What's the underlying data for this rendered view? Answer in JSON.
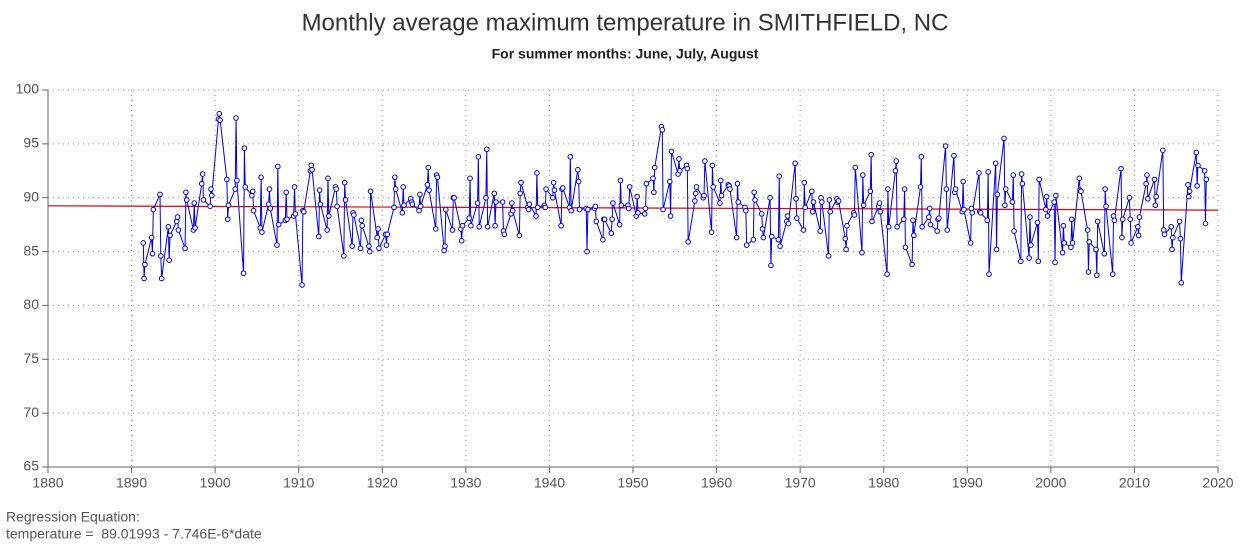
{
  "chart_data": {
    "type": "line",
    "title": "Monthly average maximum temperature in SMITHFIELD, NC",
    "subtitle": "For summer months: June, July, August",
    "regression_heading": "Regression Equation:",
    "regression_text": "temperature =  89.01993 - 7.746E-6*date",
    "regression": {
      "intercept": 89.01993,
      "slope": -7.746e-06,
      "color": "#e00000"
    },
    "xlim": [
      1880,
      2020
    ],
    "xticks": [
      1880,
      1890,
      1900,
      1910,
      1920,
      1930,
      1940,
      1950,
      1960,
      1970,
      1980,
      1990,
      2000,
      2010,
      2020
    ],
    "ylim": [
      65,
      100
    ],
    "yticks": [
      65,
      70,
      75,
      80,
      85,
      90,
      95,
      100
    ],
    "grid": true,
    "series": [
      {
        "name": "temperature",
        "color": "#0000e0",
        "x": [
          1891.4,
          1891.5,
          1891.6,
          1892.4,
          1892.5,
          1892.6,
          1893.4,
          1893.5,
          1893.6,
          1894.4,
          1894.5,
          1894.6,
          1895.4,
          1895.5,
          1895.6,
          1896.4,
          1896.5,
          1896.6,
          1897.4,
          1897.5,
          1897.6,
          1898.4,
          1898.5,
          1898.6,
          1899.4,
          1899.5,
          1899.6,
          1900.4,
          1900.5,
          1900.6,
          1901.4,
          1901.5,
          1901.6,
          1902.4,
          1902.5,
          1902.6,
          1903.4,
          1903.5,
          1903.6,
          1904.4,
          1904.5,
          1904.6,
          1905.4,
          1905.5,
          1905.6,
          1906.4,
          1906.5,
          1906.6,
          1907.4,
          1907.5,
          1907.6,
          1908.4,
          1908.5,
          1908.6,
          1909.4,
          1909.5,
          1909.6,
          1910.4,
          1910.5,
          1910.6,
          1911.4,
          1911.5,
          1911.6,
          1912.4,
          1912.5,
          1912.6,
          1913.4,
          1913.5,
          1913.6,
          1914.4,
          1914.5,
          1914.6,
          1915.4,
          1915.5,
          1915.6,
          1916.4,
          1916.5,
          1916.6,
          1917.4,
          1917.5,
          1917.6,
          1918.4,
          1918.5,
          1918.6,
          1919.4,
          1919.5,
          1919.6,
          1920.4,
          1920.5,
          1920.6,
          1921.4,
          1921.5,
          1921.6,
          1922.4,
          1922.5,
          1922.6,
          1923.4,
          1923.5,
          1923.6,
          1924.4,
          1924.5,
          1924.6,
          1925.4,
          1925.5,
          1925.6,
          1926.4,
          1926.5,
          1926.6,
          1927.4,
          1927.5,
          1927.6,
          1928.4,
          1928.5,
          1928.6,
          1929.4,
          1929.5,
          1929.6,
          1930.4,
          1930.5,
          1930.6,
          1931.4,
          1931.5,
          1931.6,
          1932.4,
          1932.5,
          1932.6,
          1933.4,
          1933.5,
          1933.6,
          1934.4,
          1934.5,
          1934.6,
          1935.4,
          1935.5,
          1935.6,
          1936.4,
          1936.5,
          1936.6,
          1937.4,
          1937.5,
          1937.6,
          1938.4,
          1938.5,
          1938.6,
          1939.4,
          1939.5,
          1939.6,
          1940.4,
          1940.5,
          1940.6,
          1941.4,
          1941.5,
          1941.6,
          1942.4,
          1942.5,
          1942.6,
          1943.4,
          1943.5,
          1943.6,
          1944.4,
          1944.5,
          1944.6,
          1945.4,
          1945.5,
          1945.6,
          1946.4,
          1946.5,
          1946.6,
          1947.4,
          1947.5,
          1947.6,
          1948.4,
          1948.5,
          1948.6,
          1949.4,
          1949.5,
          1949.6,
          1950.4,
          1950.5,
          1950.6,
          1951.4,
          1951.5,
          1951.6,
          1952.4,
          1952.5,
          1952.6,
          1953.4,
          1953.5,
          1953.6,
          1954.4,
          1954.5,
          1954.6,
          1955.4,
          1955.5,
          1955.6,
          1956.4,
          1956.5,
          1956.6,
          1957.4,
          1957.5,
          1957.6,
          1958.4,
          1958.5,
          1958.6,
          1959.4,
          1959.5,
          1959.6,
          1960.4,
          1960.5,
          1960.6,
          1961.4,
          1961.5,
          1961.6,
          1962.4,
          1962.5,
          1962.6,
          1963.4,
          1963.5,
          1963.6,
          1964.4,
          1964.5,
          1964.6,
          1965.4,
          1965.5,
          1965.6,
          1966.4,
          1966.5,
          1966.6,
          1967.4,
          1967.5,
          1967.6,
          1968.4,
          1968.5,
          1968.6,
          1969.4,
          1969.5,
          1969.6,
          1970.4,
          1970.5,
          1970.6,
          1971.4,
          1971.5,
          1971.6,
          1972.4,
          1972.5,
          1972.6,
          1973.4,
          1973.5,
          1973.6,
          1974.4,
          1974.5,
          1974.6,
          1975.4,
          1975.5,
          1975.6,
          1976.4,
          1976.5,
          1976.6,
          1977.4,
          1977.5,
          1977.6,
          1978.4,
          1978.5,
          1978.6,
          1979.4,
          1979.5,
          1979.6,
          1980.4,
          1980.5,
          1980.6,
          1981.4,
          1981.5,
          1981.6,
          1982.4,
          1982.5,
          1982.6,
          1983.4,
          1983.5,
          1983.6,
          1984.4,
          1984.5,
          1984.6,
          1985.4,
          1985.5,
          1985.6,
          1986.4,
          1986.5,
          1986.6,
          1987.4,
          1987.5,
          1987.6,
          1988.4,
          1988.5,
          1988.6,
          1989.4,
          1989.5,
          1989.6,
          1990.4,
          1990.5,
          1990.6,
          1991.4,
          1991.5,
          1991.6,
          1992.4,
          1992.5,
          1992.6,
          1993.4,
          1993.5,
          1993.6,
          1994.4,
          1994.5,
          1994.6,
          1995.4,
          1995.5,
          1995.6,
          1996.4,
          1996.5,
          1996.6,
          1997.4,
          1997.5,
          1997.6,
          1998.4,
          1998.5,
          1998.6,
          1999.4,
          1999.5,
          1999.6,
          2000.4,
          2000.5,
          2000.6,
          2001.4,
          2001.5,
          2001.6,
          2002.4,
          2002.5,
          2002.6,
          2003.4,
          2003.5,
          2003.6,
          2004.4,
          2004.5,
          2004.6,
          2005.4,
          2005.5,
          2005.6,
          2006.4,
          2006.5,
          2006.6,
          2007.4,
          2007.5,
          2007.6,
          2008.4,
          2008.5,
          2008.6,
          2009.4,
          2009.5,
          2009.6,
          2010.4,
          2010.5,
          2010.6,
          2011.4,
          2011.5,
          2011.6,
          2012.4,
          2012.5,
          2012.6,
          2013.4,
          2013.5,
          2013.6,
          2014.4,
          2014.5,
          2014.6,
          2015.4,
          2015.5,
          2015.6,
          2016.4,
          2016.5,
          2016.6,
          2017.4,
          2017.5,
          2017.6,
          2018.4,
          2018.5,
          2018.6
        ],
        "values": [
          85.8,
          82.5,
          83.8,
          86.3,
          84.8,
          88.9,
          90.3,
          84.6,
          82.5,
          87.3,
          84.2,
          86.5,
          87.8,
          88.2,
          87.0,
          85.3,
          90.5,
          89.8,
          87.0,
          89.5,
          87.2,
          91.3,
          92.2,
          89.8,
          89.2,
          90.8,
          90.2,
          97.3,
          97.8,
          97.2,
          91.7,
          88.0,
          89.3,
          90.8,
          97.4,
          91.6,
          83.0,
          94.6,
          91.0,
          90.2,
          90.6,
          88.8,
          87.2,
          91.9,
          86.8,
          89.4,
          90.8,
          89.0,
          85.6,
          92.9,
          87.5,
          87.9,
          90.5,
          88.0,
          88.3,
          91.0,
          88.5,
          81.9,
          88.8,
          88.7,
          92.5,
          93.0,
          92.6,
          86.4,
          90.7,
          89.4,
          87.0,
          91.8,
          88.3,
          91.0,
          90.8,
          89.2,
          84.6,
          91.4,
          89.8,
          85.5,
          88.6,
          88.4,
          85.3,
          87.9,
          87.4,
          85.5,
          85.0,
          90.6,
          86.3,
          87.1,
          85.3,
          86.6,
          85.6,
          86.6,
          89.1,
          91.9,
          90.8,
          88.6,
          91.0,
          89.3,
          89.9,
          89.6,
          89.4,
          88.8,
          90.3,
          89.2,
          91.2,
          92.8,
          90.7,
          87.1,
          92.1,
          91.9,
          85.1,
          85.5,
          88.9,
          87.0,
          90.0,
          90.0,
          87.1,
          86.0,
          87.4,
          88.1,
          91.8,
          87.4,
          89.5,
          93.8,
          87.3,
          90.0,
          94.5,
          87.3,
          90.4,
          87.4,
          89.6,
          89.6,
          86.9,
          86.6,
          88.5,
          89.5,
          88.8,
          86.5,
          90.4,
          91.4,
          89.1,
          88.9,
          89.4,
          88.3,
          92.3,
          89.1,
          89.3,
          89.1,
          90.8,
          90.0,
          91.4,
          90.7,
          87.4,
          90.8,
          90.9,
          89.1,
          93.8,
          88.8,
          92.6,
          91.5,
          88.9,
          89.0,
          85.0,
          88.9,
          89.0,
          89.2,
          87.8,
          86.1,
          88.0,
          88.0,
          86.7,
          88.0,
          89.5,
          87.5,
          91.6,
          89.3,
          89.3,
          89.0,
          91.0,
          88.3,
          90.1,
          88.6,
          88.5,
          89.0,
          91.3,
          91.8,
          90.5,
          92.8,
          96.6,
          96.3,
          88.9,
          91.5,
          88.3,
          94.3,
          92.2,
          93.6,
          92.5,
          93.0,
          92.7,
          85.9,
          89.7,
          90.4,
          91.0,
          90.0,
          90.2,
          93.4,
          86.8,
          93.0,
          91.0,
          89.5,
          91.6,
          90.2,
          91.2,
          91.1,
          90.8,
          86.3,
          91.3,
          89.6,
          89.1,
          88.8,
          85.6,
          86.1,
          90.5,
          89.8,
          88.5,
          87.1,
          86.3,
          90.0,
          83.7,
          86.4,
          86.1,
          92.0,
          85.5,
          87.8,
          88.3,
          87.6,
          93.2,
          89.9,
          88.1,
          87.0,
          91.4,
          89.1,
          90.6,
          88.7,
          89.6,
          86.9,
          90.0,
          89.6,
          84.6,
          89.8,
          88.7,
          89.9,
          89.6,
          89.7,
          86.2,
          85.2,
          87.4,
          88.6,
          88.4,
          92.8,
          84.9,
          92.1,
          89.3,
          90.6,
          94.0,
          87.8,
          89.2,
          89.5,
          88.7,
          82.9,
          90.8,
          87.3,
          92.5,
          93.4,
          87.3,
          88.0,
          90.8,
          85.4,
          83.8,
          87.9,
          86.5,
          91.0,
          93.8,
          87.3,
          88.2,
          89.0,
          87.5,
          86.9,
          88.0,
          88.1,
          94.8,
          90.8,
          87.0,
          93.9,
          90.5,
          90.8,
          88.7,
          91.5,
          88.9,
          85.8,
          89.0,
          88.6,
          92.3,
          88.7,
          88.6,
          87.9,
          92.4,
          82.9,
          93.2,
          85.2,
          90.3,
          95.5,
          89.3,
          90.8,
          89.6,
          92.1,
          86.9,
          84.1,
          92.2,
          91.3,
          84.4,
          88.2,
          85.6,
          87.7,
          84.1,
          91.7,
          88.9,
          90.1,
          88.3,
          89.6,
          84.0,
          90.2,
          84.9,
          87.4,
          85.8,
          85.4,
          88.0,
          85.8,
          91.8,
          90.7,
          90.6,
          87.0,
          83.1,
          85.9,
          85.2,
          82.8,
          87.8,
          84.8,
          90.8,
          89.2,
          82.9,
          88.3,
          87.9,
          92.7,
          86.3,
          88.0,
          90.0,
          88.0,
          85.8,
          87.3,
          86.5,
          88.2,
          91.3,
          92.1,
          89.9,
          91.7,
          89.3,
          90.1,
          94.4,
          87.0,
          86.6,
          87.3,
          85.2,
          86.3,
          87.8,
          86.2,
          82.1,
          91.2,
          90.1,
          90.6,
          94.2,
          91.1,
          93.0,
          92.5,
          87.6,
          91.7
        ]
      }
    ]
  }
}
